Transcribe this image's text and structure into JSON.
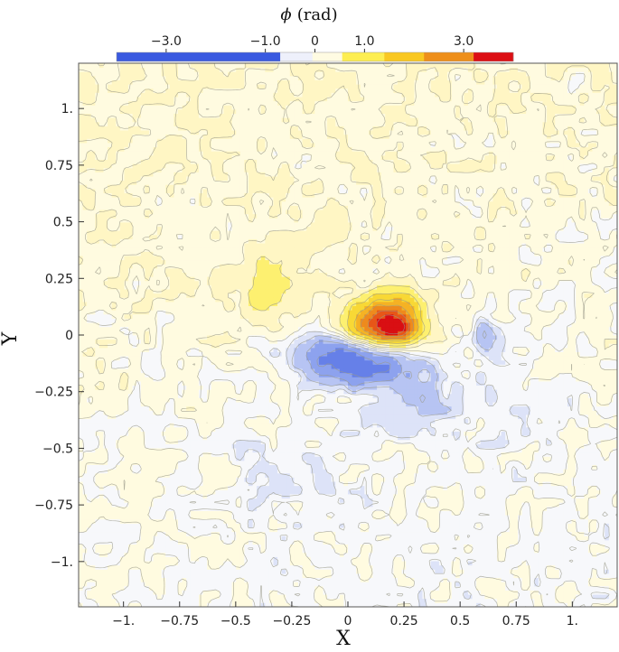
{
  "chart_data": {
    "type": "heatmap",
    "subtype": "filled-contour",
    "colorbar": {
      "title_symbol": "ϕ",
      "title_unit": "(rad)",
      "tick_labels": [
        "−3.0",
        "−1.0",
        "0",
        "1.0",
        "3.0"
      ],
      "tick_values": [
        -3.0,
        -1.0,
        0,
        1.0,
        3.0
      ],
      "range": [
        -4.0,
        4.0
      ],
      "bins": [
        {
          "from": -4.0,
          "to": -0.7,
          "color": "#3a5ae0"
        },
        {
          "from": -0.7,
          "to": -0.05,
          "color": "#eef0fb"
        },
        {
          "from": -0.05,
          "to": 0.55,
          "color": "#fffbe2"
        },
        {
          "from": 0.55,
          "to": 1.4,
          "color": "#fdee52"
        },
        {
          "from": 1.4,
          "to": 2.2,
          "color": "#f9c822"
        },
        {
          "from": 2.2,
          "to": 3.2,
          "color": "#ee8f1b"
        },
        {
          "from": 3.2,
          "to": 4.0,
          "color": "#dc0f14"
        }
      ]
    },
    "contour_levels": [
      -2.0,
      -1.5,
      -1.0,
      -0.6,
      -0.3,
      -0.1,
      0.1,
      0.3,
      0.6,
      1.0,
      1.5,
      2.0,
      2.5,
      3.0
    ],
    "level_colors": [
      {
        "max": -2.0,
        "color": "#3450dc"
      },
      {
        "max": -1.5,
        "color": "#4a66e2"
      },
      {
        "max": -1.0,
        "color": "#6680e8"
      },
      {
        "max": -0.6,
        "color": "#8da2ee"
      },
      {
        "max": -0.3,
        "color": "#b7c4f3"
      },
      {
        "max": -0.1,
        "color": "#dde3f8"
      },
      {
        "max": 0.1,
        "color": "#f7f8fb"
      },
      {
        "max": 0.3,
        "color": "#fffbe0"
      },
      {
        "max": 0.6,
        "color": "#fff6c4"
      },
      {
        "max": 1.0,
        "color": "#fdf070"
      },
      {
        "max": 1.5,
        "color": "#f8d835"
      },
      {
        "max": 2.0,
        "color": "#f5b224"
      },
      {
        "max": 2.5,
        "color": "#ee8a1d"
      },
      {
        "max": 3.0,
        "color": "#e75618"
      },
      {
        "max": 99,
        "color": "#d90f13"
      }
    ],
    "contour_line_color": "#9a9a8a",
    "xlabel": "X",
    "ylabel": "Y",
    "xlim": [
      -1.2,
      1.2
    ],
    "ylim": [
      -1.2,
      1.2
    ],
    "x_tick_values": [
      -1.0,
      -0.75,
      -0.5,
      -0.25,
      0,
      0.25,
      0.5,
      0.75,
      1.0
    ],
    "x_tick_labels": [
      "−1.",
      "−0.75",
      "−0.5",
      "−0.25",
      "0",
      "0.25",
      "0.5",
      "0.75",
      "1."
    ],
    "y_tick_values": [
      1.0,
      0.75,
      0.5,
      0.25,
      0,
      -0.25,
      -0.5,
      -0.75,
      -1.0
    ],
    "y_tick_labels": [
      "1.",
      "0.75",
      "0.5",
      "0.25",
      "0",
      "−0.25",
      "−0.5",
      "−0.75",
      "−1."
    ],
    "features": [
      {
        "kind": "lobe",
        "x": 0.15,
        "y": 0.05,
        "sx": 0.16,
        "sy": 0.09,
        "amp": 2.6
      },
      {
        "kind": "lobe",
        "x": 0.22,
        "y": 0.02,
        "sx": 0.09,
        "sy": 0.05,
        "amp": 1.5
      },
      {
        "kind": "lobe",
        "x": 0.21,
        "y": 0.14,
        "sx": 0.13,
        "sy": 0.07,
        "amp": 0.8
      },
      {
        "kind": "lobe",
        "x": 0.06,
        "y": -0.13,
        "sx": 0.22,
        "sy": 0.1,
        "amp": -1.4
      },
      {
        "kind": "lobe",
        "x": -0.12,
        "y": -0.07,
        "sx": 0.18,
        "sy": 0.09,
        "amp": -0.55
      },
      {
        "kind": "lobe",
        "x": 0.3,
        "y": -0.3,
        "sx": 0.17,
        "sy": 0.13,
        "amp": -0.45
      },
      {
        "kind": "lobe",
        "x": 0.62,
        "y": 0.0,
        "sx": 0.05,
        "sy": 0.07,
        "amp": -0.75
      },
      {
        "kind": "lobe",
        "x": -0.35,
        "y": 0.24,
        "sx": 0.13,
        "sy": 0.16,
        "amp": 0.65
      },
      {
        "kind": "lobe",
        "x": -0.1,
        "y": 0.45,
        "sx": 0.1,
        "sy": 0.06,
        "amp": 0.35
      },
      {
        "kind": "lobe",
        "x": -0.3,
        "y": -0.6,
        "sx": 0.35,
        "sy": 0.3,
        "amp": -0.18
      },
      {
        "kind": "lobe",
        "x": 0.65,
        "y": -0.25,
        "sx": 0.3,
        "sy": 0.3,
        "amp": -0.15
      }
    ]
  }
}
